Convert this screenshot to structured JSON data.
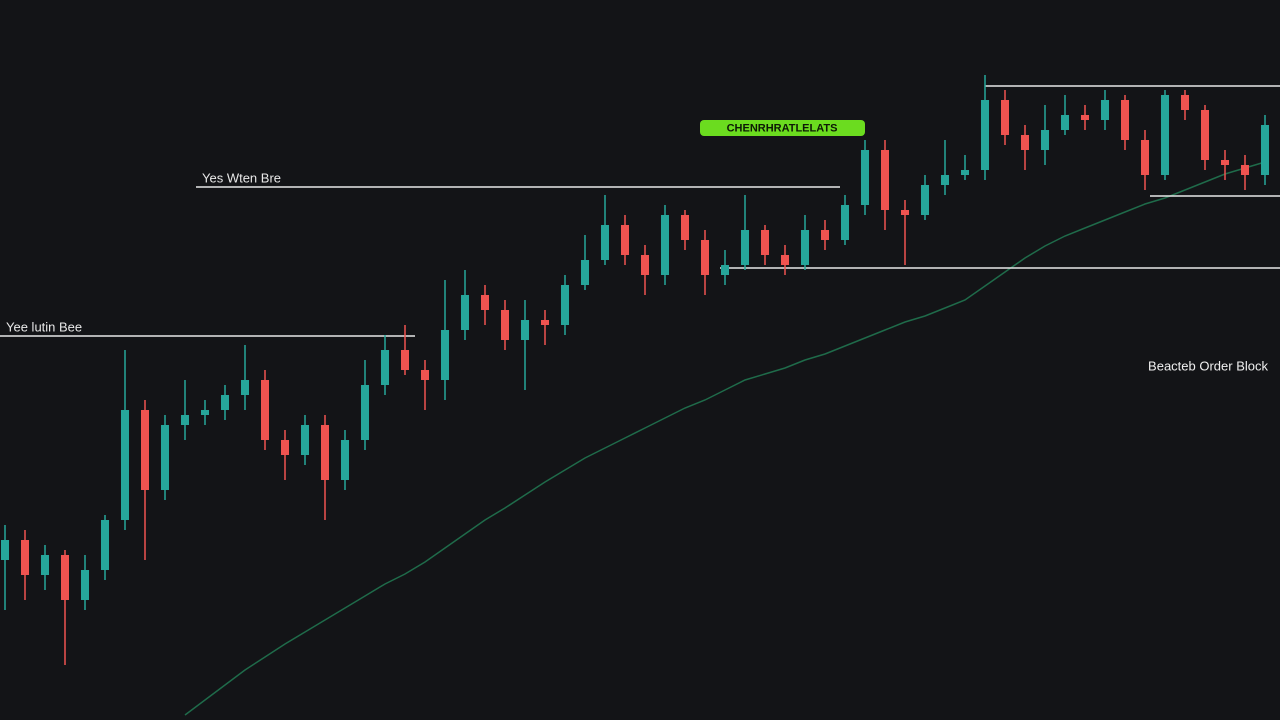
{
  "chart_data": {
    "type": "candlestick",
    "up_color": "#26a69a",
    "down_color": "#ef5350",
    "ma_color": "#1f6b4a",
    "level_color": "#e8e8e8",
    "ylim": [
      0,
      720
    ],
    "open": [
      160,
      180,
      145,
      165,
      120,
      150,
      200,
      310,
      230,
      295,
      305,
      310,
      325,
      340,
      280,
      265,
      295,
      240,
      280,
      335,
      370,
      350,
      340,
      390,
      425,
      410,
      380,
      400,
      395,
      435,
      460,
      495,
      465,
      445,
      505,
      480,
      445,
      455,
      490,
      465,
      455,
      490,
      480,
      515,
      570,
      510,
      505,
      535,
      545,
      550,
      620,
      585,
      570,
      590,
      605,
      600,
      620,
      580,
      545,
      625,
      610,
      560,
      555,
      545
    ],
    "high": [
      195,
      190,
      175,
      170,
      165,
      205,
      370,
      320,
      305,
      340,
      320,
      335,
      375,
      350,
      290,
      305,
      305,
      290,
      360,
      385,
      395,
      360,
      440,
      450,
      435,
      420,
      420,
      410,
      445,
      485,
      525,
      505,
      475,
      515,
      510,
      490,
      470,
      525,
      495,
      475,
      505,
      500,
      525,
      580,
      580,
      520,
      545,
      580,
      565,
      645,
      630,
      595,
      615,
      625,
      615,
      630,
      625,
      590,
      630,
      630,
      615,
      570,
      565,
      605
    ],
    "low": [
      110,
      120,
      130,
      55,
      110,
      140,
      190,
      160,
      220,
      280,
      295,
      300,
      310,
      270,
      240,
      255,
      200,
      230,
      270,
      325,
      345,
      310,
      320,
      380,
      395,
      370,
      330,
      375,
      385,
      430,
      455,
      455,
      425,
      435,
      470,
      425,
      435,
      450,
      455,
      445,
      450,
      470,
      475,
      505,
      490,
      455,
      500,
      525,
      540,
      540,
      575,
      550,
      555,
      585,
      590,
      590,
      570,
      530,
      540,
      600,
      550,
      540,
      530,
      535
    ],
    "close": [
      180,
      145,
      165,
      120,
      150,
      200,
      310,
      230,
      295,
      305,
      310,
      325,
      340,
      280,
      265,
      295,
      240,
      280,
      335,
      370,
      350,
      340,
      390,
      425,
      410,
      380,
      400,
      395,
      435,
      460,
      495,
      465,
      445,
      505,
      480,
      445,
      455,
      490,
      465,
      455,
      490,
      480,
      515,
      570,
      510,
      505,
      535,
      545,
      550,
      620,
      585,
      570,
      590,
      605,
      600,
      620,
      580,
      545,
      625,
      610,
      560,
      555,
      545,
      595
    ],
    "ma": [
      null,
      null,
      null,
      null,
      null,
      null,
      null,
      null,
      null,
      5,
      20,
      35,
      50,
      63,
      76,
      88,
      100,
      112,
      124,
      136,
      146,
      158,
      172,
      186,
      200,
      212,
      225,
      238,
      250,
      262,
      272,
      282,
      292,
      302,
      312,
      320,
      330,
      340,
      346,
      352,
      360,
      366,
      374,
      382,
      390,
      398,
      404,
      412,
      420,
      434,
      448,
      462,
      474,
      484,
      492,
      500,
      508,
      516,
      522,
      530,
      538,
      546,
      552,
      558
    ],
    "levels": [
      {
        "value": 533,
        "label": "Yes Wten Bre"
      },
      {
        "value": 384,
        "label": "Yee lutin Bee"
      },
      {
        "value": 452
      },
      {
        "value": 634
      },
      {
        "value": 524
      }
    ],
    "badge": "CHENRHRATLELATS",
    "annotation": "Beacteb Order Block"
  }
}
